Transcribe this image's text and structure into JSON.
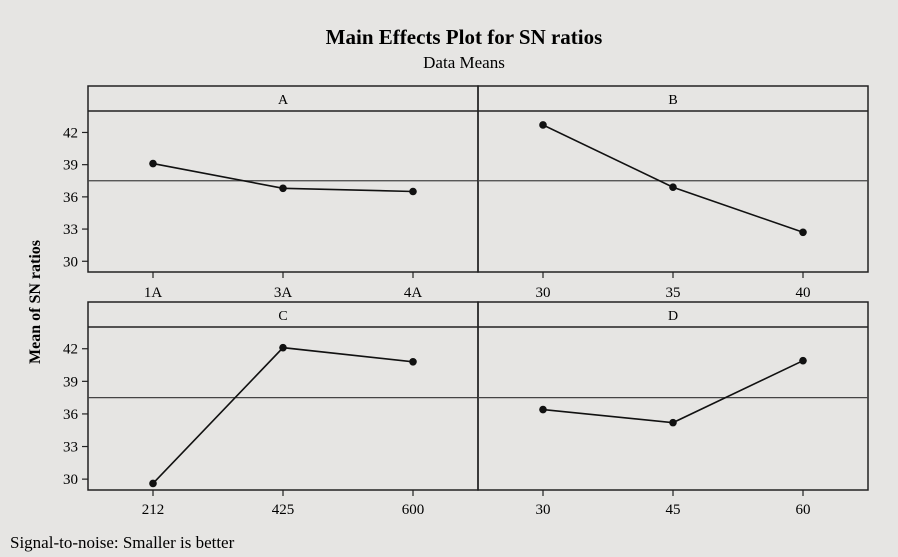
{
  "chart_data": {
    "type": "line",
    "title": "Main Effects Plot for SN ratios",
    "subtitle": "Data Means",
    "ylabel": "Mean of SN ratios",
    "footnote": "Signal-to-noise: Smaller is better",
    "ylim": [
      29,
      44
    ],
    "yticks": [
      30,
      33,
      36,
      39,
      42
    ],
    "reference_line": 37.5,
    "panels": [
      {
        "name": "A",
        "categories": [
          "1A",
          "3A",
          "4A"
        ],
        "values": [
          39.1,
          36.8,
          36.5
        ]
      },
      {
        "name": "B",
        "categories": [
          "30",
          "35",
          "40"
        ],
        "values": [
          42.7,
          36.9,
          32.7
        ]
      },
      {
        "name": "C",
        "categories": [
          "212",
          "425",
          "600"
        ],
        "values": [
          29.6,
          42.1,
          40.8
        ]
      },
      {
        "name": "D",
        "categories": [
          "30",
          "45",
          "60"
        ],
        "values": [
          36.4,
          35.2,
          40.9
        ]
      }
    ]
  }
}
